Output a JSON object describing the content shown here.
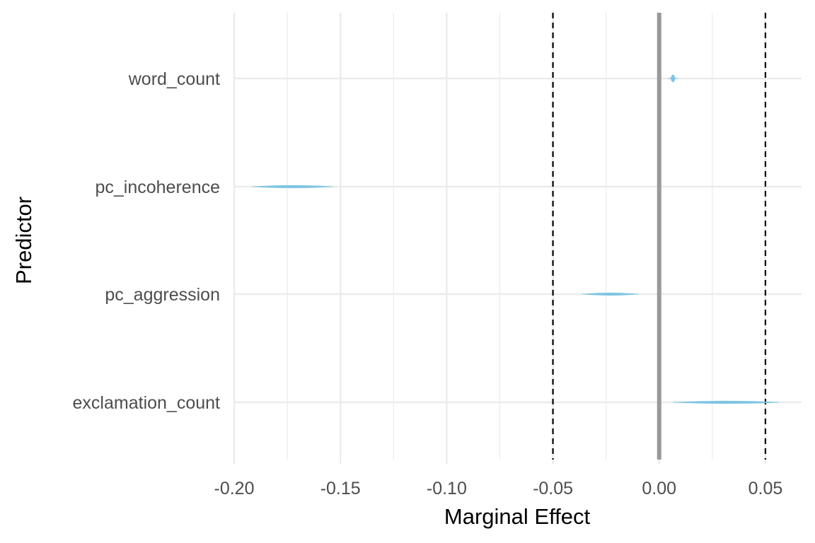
{
  "chart_data": {
    "type": "scatter",
    "title": "",
    "xlabel": "Marginal Effect",
    "ylabel": "Predictor",
    "xlim": [
      -0.2,
      0.067
    ],
    "x_ticks": [
      -0.2,
      -0.15,
      -0.1,
      -0.05,
      0.0,
      0.05
    ],
    "x_tick_labels": [
      "-0.20",
      "-0.15",
      "-0.10",
      "-0.05",
      "0.00",
      "0.05"
    ],
    "categories": [
      "word_count",
      "pc_incoherence",
      "pc_aggression",
      "exclamation_count"
    ],
    "grid": true,
    "series": [
      {
        "values": [
          {
            "category": "word_count",
            "mean": 0.0065,
            "low": 0.0055,
            "high": 0.0075
          },
          {
            "category": "pc_incoherence",
            "mean": -0.172,
            "low": -0.19,
            "high": -0.155
          },
          {
            "category": "pc_aggression",
            "mean": -0.023,
            "low": -0.035,
            "high": -0.011
          },
          {
            "category": "exclamation_count",
            "mean": 0.031,
            "low": 0.008,
            "high": 0.055
          }
        ],
        "color": "#7bc4e2"
      }
    ],
    "reference_lines": [
      {
        "x": 0.0,
        "style": "solid",
        "color": "#999999"
      },
      {
        "x": -0.05,
        "style": "dashed",
        "color": "#000000"
      },
      {
        "x": 0.05,
        "style": "dashed",
        "color": "#000000"
      }
    ]
  }
}
